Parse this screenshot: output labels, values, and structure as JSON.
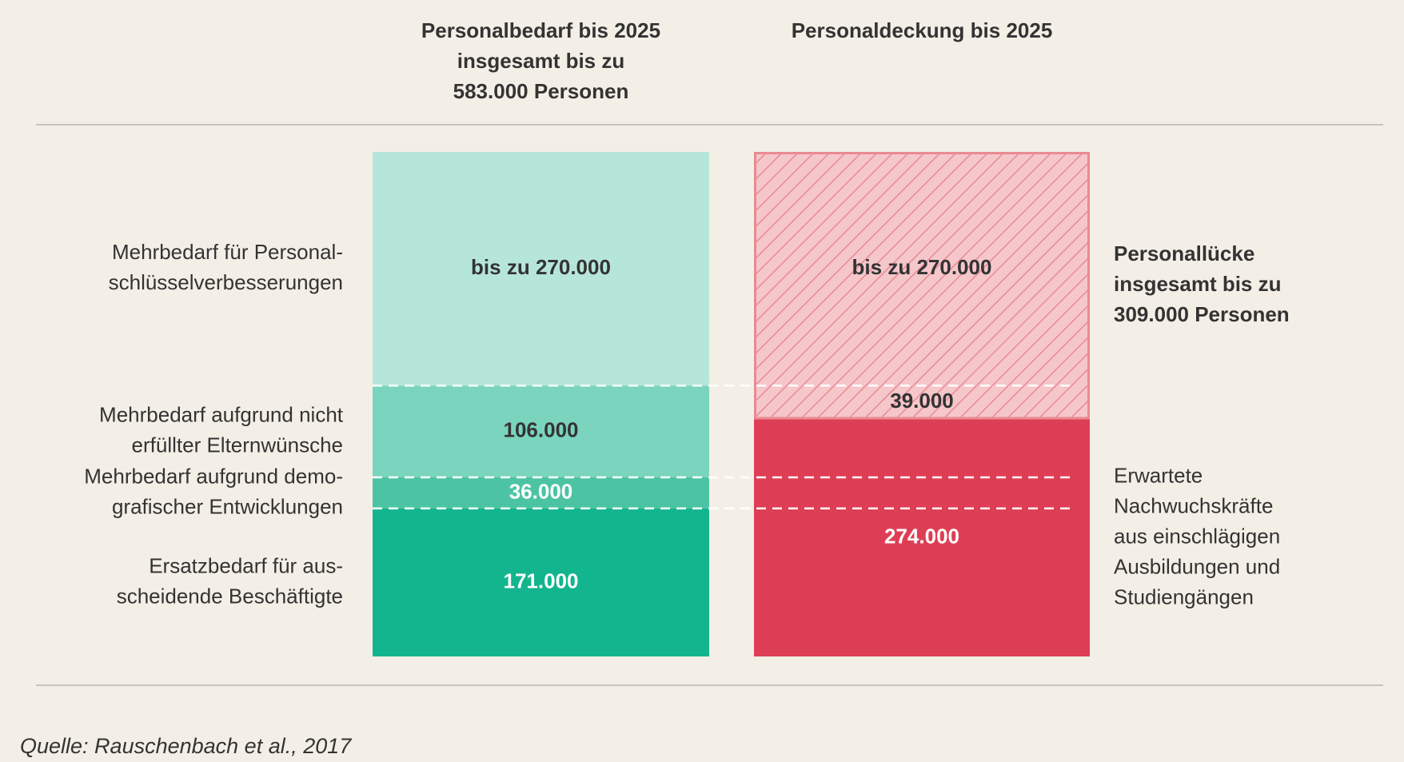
{
  "chart_data": {
    "type": "stacked_bar",
    "bars": [
      {
        "header_lines": [
          "Personalbedarf bis 2025",
          "insgesamt bis zu",
          "583.000 Personen"
        ],
        "segments": [
          {
            "name_lines": [
              "Ersatzbedarf für aus-",
              "scheidende Beschäftigte"
            ],
            "value": 171000,
            "value_label": "171.000",
            "color": "#12b58e",
            "text_color": "#ffffff"
          },
          {
            "name_lines": [
              "Mehrbedarf aufgrund demo-",
              "grafischer Entwicklungen"
            ],
            "value": 36000,
            "value_label": "36.000",
            "color": "#4cc4a4",
            "text_color": "#ffffff"
          },
          {
            "name_lines": [
              "Mehrbedarf aufgrund nicht",
              "erfüllter Elternwünsche"
            ],
            "value": 106000,
            "value_label": "106.000",
            "color": "#7bd4bd",
            "text_color": "#333333"
          },
          {
            "name_lines": [
              "Mehrbedarf für Personal-",
              "schlüsselverbesserungen"
            ],
            "value": 270000,
            "value_label": "bis zu 270.000",
            "color": "#b6e6d9",
            "text_color": "#333333"
          }
        ]
      },
      {
        "header_lines": [
          "Personaldeckung bis 2025"
        ],
        "segments": [
          {
            "value": 274000,
            "value_label": "274.000",
            "color": "#de3e55",
            "text_color": "#ffffff"
          },
          {
            "value": 39000,
            "value_label": "39.000",
            "color": "#f5c7ca",
            "hatched": true,
            "text_color": "#333333"
          },
          {
            "value": 270000,
            "value_label": "bis zu 270.000",
            "color": "#f5c7ca",
            "hatched": true,
            "text_color": "#333333"
          }
        ]
      }
    ],
    "annotations": [
      {
        "lines": [
          "Personallücke",
          "insgesamt bis zu",
          "309.000 Personen"
        ],
        "bold": true,
        "segments": [
          1,
          2
        ]
      },
      {
        "lines": [
          "Erwartete",
          "Nachwuchskräfte",
          "aus einschlägigen",
          "Ausbildungen und",
          "Studiengängen"
        ],
        "bold": false,
        "segments": [
          0
        ]
      }
    ],
    "source": "Quelle: Rauschenbach et al., 2017"
  }
}
